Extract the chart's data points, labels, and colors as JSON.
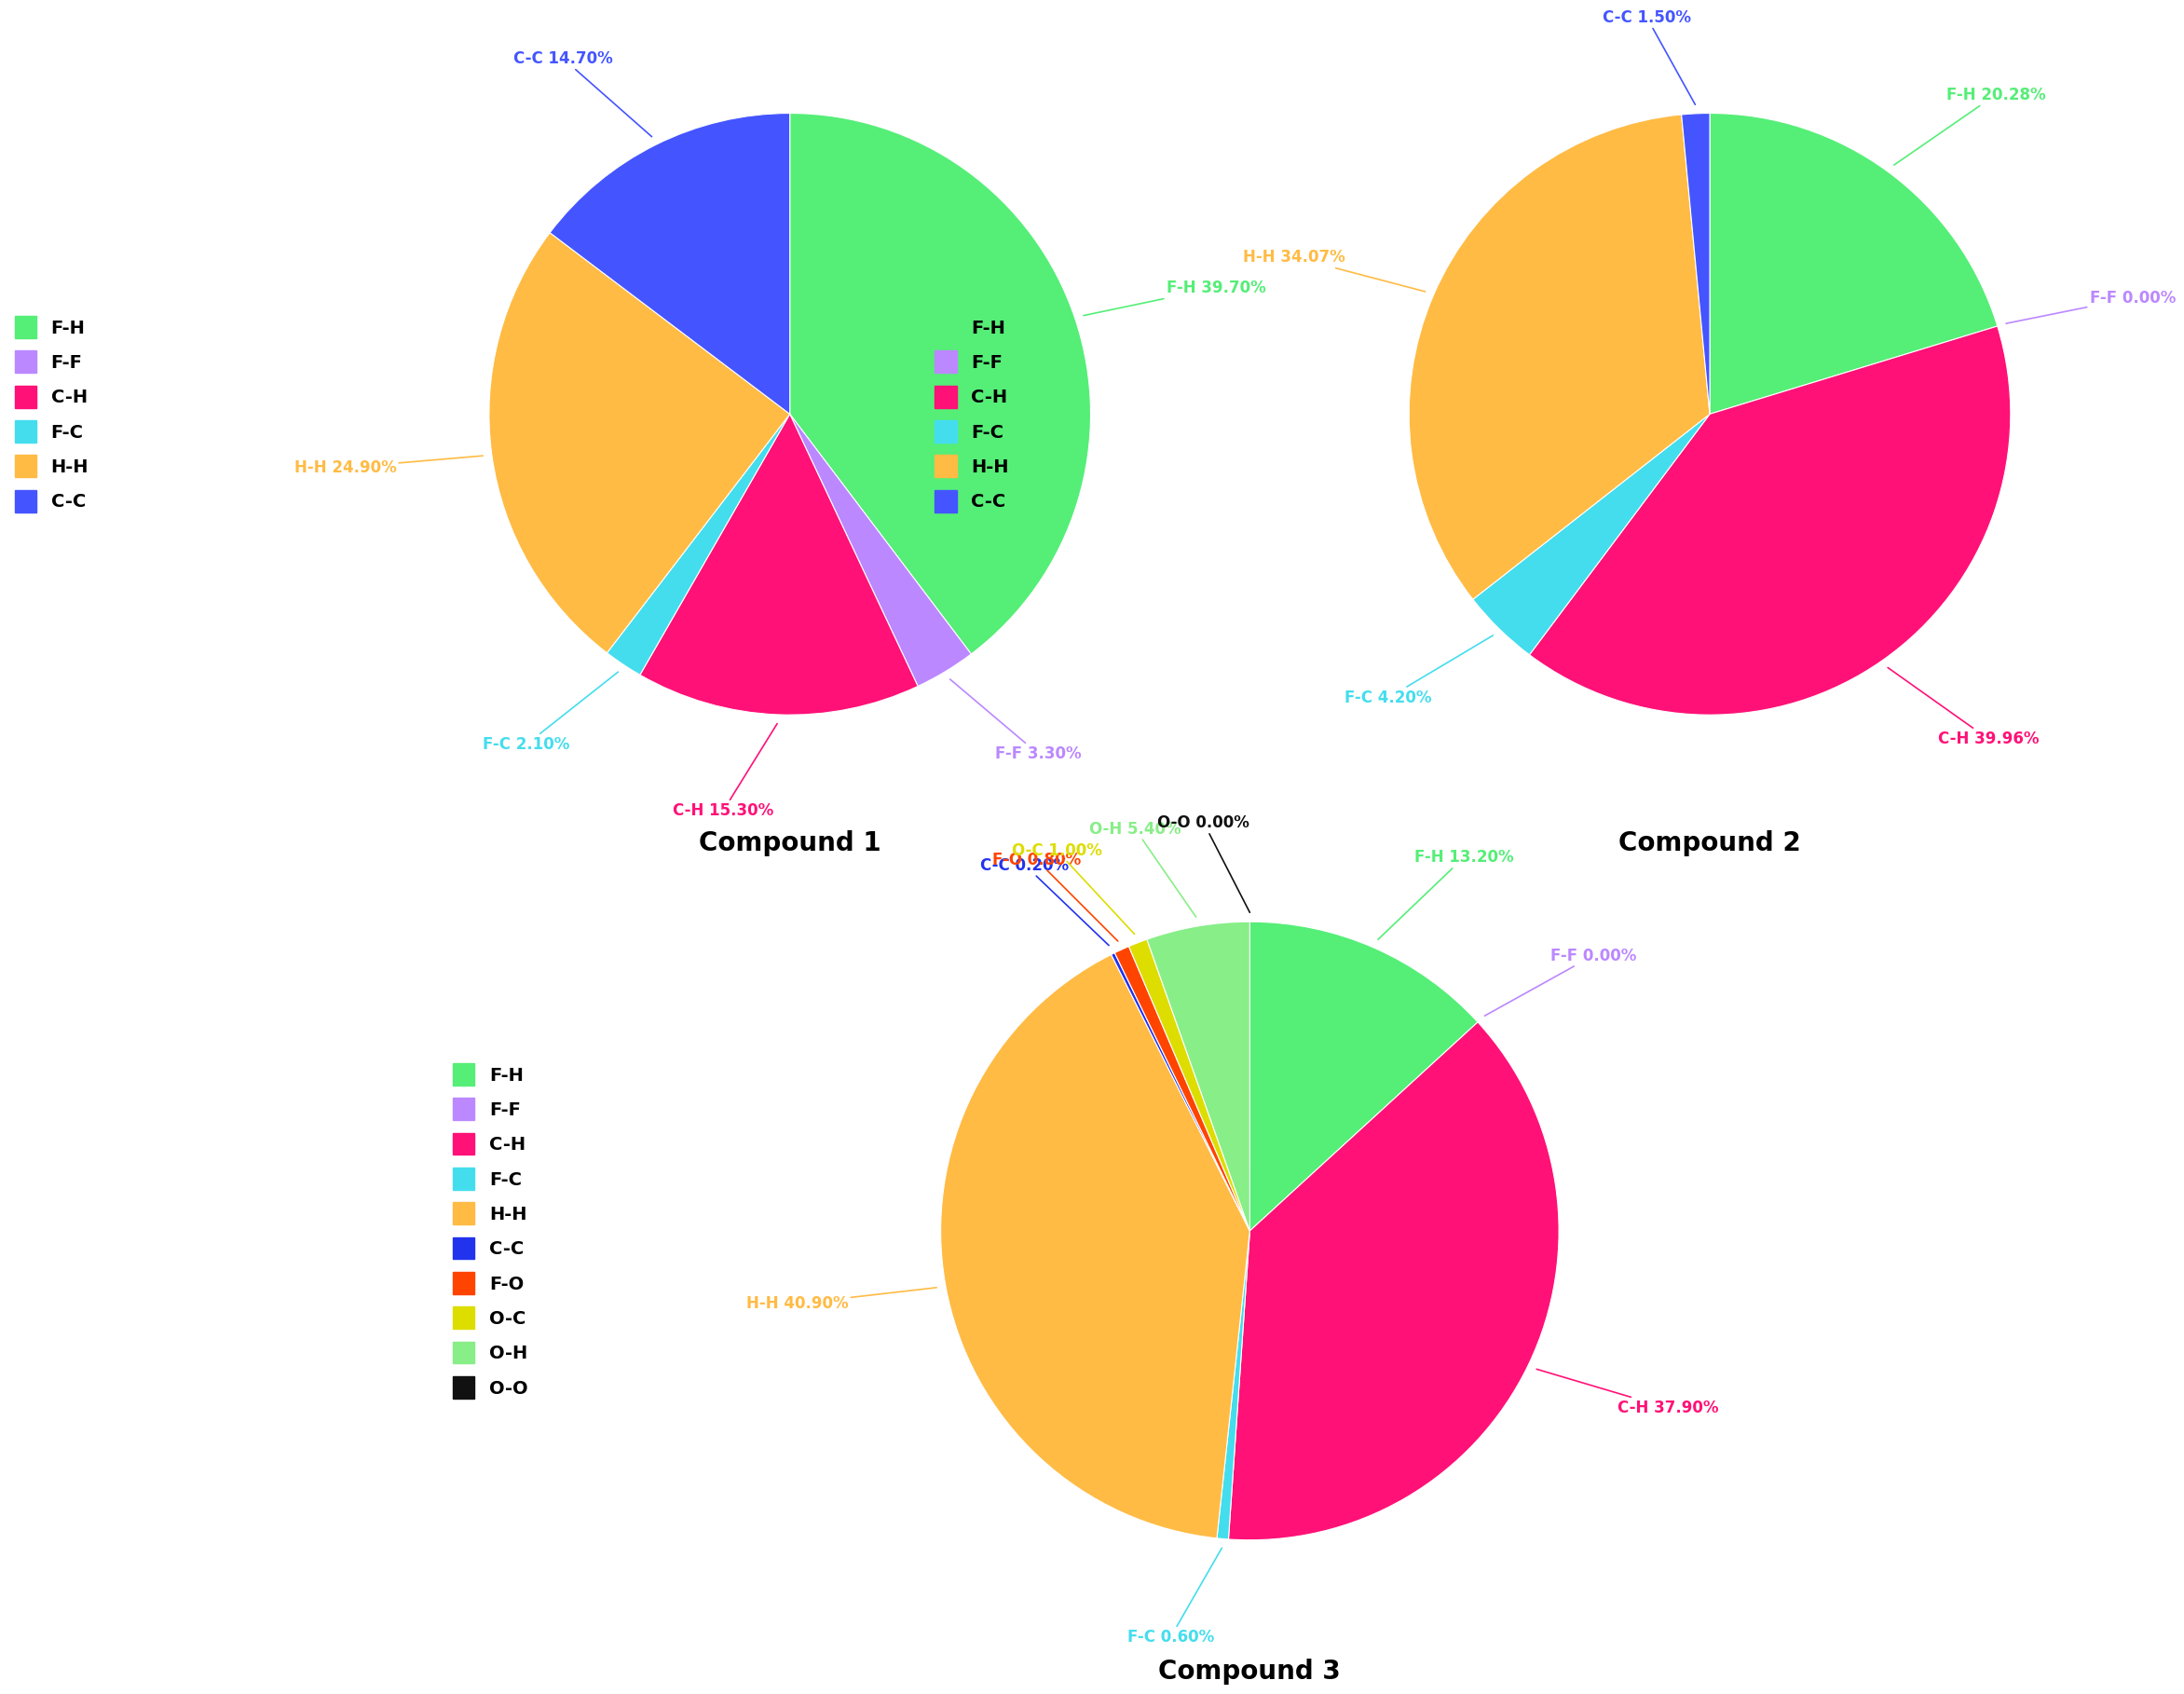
{
  "compound1": {
    "labels": [
      "F-H",
      "F-F",
      "C-H",
      "F-C",
      "H-H",
      "C-C"
    ],
    "values": [
      39.7,
      3.3,
      15.3,
      2.1,
      24.9,
      14.7
    ],
    "colors": [
      "#55ee77",
      "#bb88ff",
      "#ff1177",
      "#44ddee",
      "#ffbb44",
      "#4455ff"
    ],
    "label_colors": [
      "#55ee77",
      "#bb88ff",
      "#ff1177",
      "#44ddee",
      "#ffbb44",
      "#4455ff"
    ],
    "title": "Compound 1"
  },
  "compound2": {
    "labels": [
      "F-H",
      "F-F",
      "C-H",
      "F-C",
      "H-H",
      "C-C"
    ],
    "values": [
      20.28,
      0.0,
      39.96,
      4.2,
      34.07,
      1.5
    ],
    "colors": [
      "#55ee77",
      "#bb88ff",
      "#ff1177",
      "#44ddee",
      "#ffbb44",
      "#4455ff"
    ],
    "label_colors": [
      "#55ee77",
      "#bb88ff",
      "#ff1177",
      "#44ddee",
      "#ffbb44",
      "#4455ff"
    ],
    "title": "Compound 2"
  },
  "compound3": {
    "labels": [
      "F-H",
      "F-F",
      "C-H",
      "F-C",
      "H-H",
      "C-C",
      "F-O",
      "O-C",
      "O-H",
      "O-O"
    ],
    "values": [
      13.2,
      0.0,
      37.9,
      0.6,
      40.9,
      0.2,
      0.8,
      1.0,
      5.4,
      0.0
    ],
    "colors": [
      "#55ee77",
      "#bb88ff",
      "#ff1177",
      "#44ddee",
      "#ffbb44",
      "#2233ee",
      "#ff4400",
      "#dddd00",
      "#88ee88",
      "#111111"
    ],
    "label_colors": [
      "#55ee77",
      "#bb88ff",
      "#ff1177",
      "#44ddee",
      "#ffbb44",
      "#2233ee",
      "#ff4400",
      "#dddd00",
      "#88ee88",
      "#111111"
    ],
    "title": "Compound 3"
  },
  "legend_labels_12": [
    "F-H",
    "F-F",
    "C-H",
    "F-C",
    "H-H",
    "C-C"
  ],
  "legend_colors_12": [
    "#55ee77",
    "#bb88ff",
    "#ff1177",
    "#44ddee",
    "#ffbb44",
    "#4455ff"
  ],
  "legend_labels_3": [
    "F-H",
    "F-F",
    "C-H",
    "F-C",
    "H-H",
    "C-C",
    "F-O",
    "O-C",
    "O-H",
    "O-O"
  ],
  "legend_colors_3": [
    "#55ee77",
    "#bb88ff",
    "#ff1177",
    "#44ddee",
    "#ffbb44",
    "#2233ee",
    "#ff4400",
    "#dddd00",
    "#88ee88",
    "#111111"
  ],
  "bg_color": "#ffffff",
  "title_fontsize": 20,
  "label_fontsize": 12,
  "legend_fontsize": 14
}
